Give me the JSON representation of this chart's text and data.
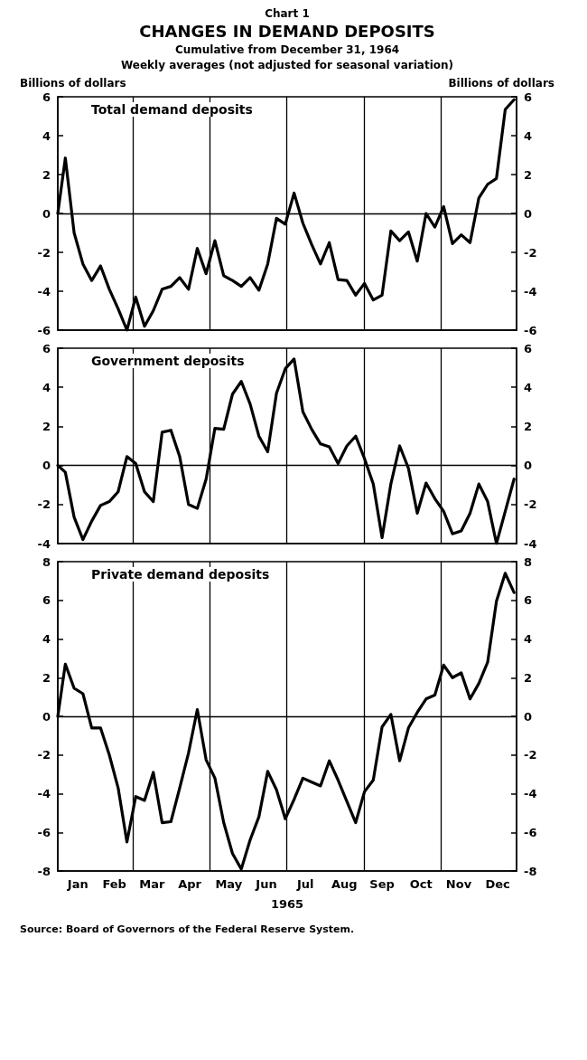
{
  "chart_data": [
    {
      "type": "line",
      "title": "CHANGES IN DEMAND DEPOSITS",
      "subtitle": "Cumulative from December 31, 1964",
      "annotations": [
        "Chart 1",
        "Weekly averages (not adjusted for seasonal variation)"
      ],
      "ylabel": "Billions of dollars",
      "y2label": "Billions of dollars",
      "x": [
        "1964-12-31",
        "1965-01-06",
        "1965-01-13",
        "1965-01-20",
        "1965-01-27",
        "1965-02-03",
        "1965-02-10",
        "1965-02-17",
        "1965-02-24",
        "1965-03-03",
        "1965-03-10",
        "1965-03-17",
        "1965-03-24",
        "1965-03-31",
        "1965-04-07",
        "1965-04-14",
        "1965-04-21",
        "1965-04-28",
        "1965-05-05",
        "1965-05-12",
        "1965-05-19",
        "1965-05-26",
        "1965-06-02",
        "1965-06-09",
        "1965-06-16",
        "1965-06-23",
        "1965-06-30",
        "1965-07-07",
        "1965-07-14",
        "1965-07-21",
        "1965-07-28",
        "1965-08-04",
        "1965-08-11",
        "1965-08-18",
        "1965-08-25",
        "1965-09-01",
        "1965-09-08",
        "1965-09-15",
        "1965-09-22",
        "1965-09-29",
        "1965-10-06",
        "1965-10-13",
        "1965-10-20",
        "1965-10-27",
        "1965-11-03",
        "1965-11-10",
        "1965-11-17",
        "1965-11-24",
        "1965-12-01",
        "1965-12-08",
        "1965-12-15",
        "1965-12-22",
        "1965-12-29"
      ],
      "series": [
        {
          "name": "Total demand deposits",
          "color": "#000000",
          "values": [
            0,
            2.85,
            -1.0,
            -2.6,
            -3.45,
            -2.7,
            -3.9,
            -4.9,
            -6,
            -4.3,
            -5.8,
            -5.0,
            -3.9,
            -3.75,
            -3.3,
            -3.9,
            -1.8,
            -3.1,
            -1.4,
            -3.2,
            -3.45,
            -3.75,
            -3.3,
            -3.95,
            -2.6,
            -0.25,
            -0.55,
            1.05,
            -0.5,
            -1.6,
            -2.6,
            -1.5,
            -3.4,
            -3.45,
            -4.2,
            -3.6,
            -4.45,
            -4.2,
            -0.9,
            -1.4,
            -0.95,
            -2.45,
            0,
            -0.7,
            0.35,
            -1.55,
            -1.1,
            -1.5,
            0.8,
            1.5,
            1.8,
            5.35,
            5.85
          ]
        }
      ],
      "xlim": [
        "1964-12-31",
        "1965-12-31"
      ],
      "ylim": [
        -6,
        6
      ],
      "yticks": [
        -6,
        -4,
        -2,
        0,
        2,
        4,
        6
      ],
      "y2lim": [
        -6,
        6
      ],
      "y2ticks": [
        -6,
        -4,
        -2,
        0,
        2,
        4,
        6
      ],
      "tick_labels": "y",
      "marker": "none",
      "line_style": "solid",
      "ref_lines": [
        {
          "axis": "y",
          "value": 0
        },
        {
          "axis": "x",
          "value": "1965-03-01"
        },
        {
          "axis": "x",
          "value": "1965-05-01"
        },
        {
          "axis": "x",
          "value": "1965-07-01"
        },
        {
          "axis": "x",
          "value": "1965-09-01"
        },
        {
          "axis": "x",
          "value": "1965-11-01"
        }
      ]
    },
    {
      "type": "line",
      "x": [
        "1964-12-31",
        "1965-01-06",
        "1965-01-13",
        "1965-01-20",
        "1965-01-27",
        "1965-02-03",
        "1965-02-10",
        "1965-02-17",
        "1965-02-24",
        "1965-03-03",
        "1965-03-10",
        "1965-03-17",
        "1965-03-24",
        "1965-03-31",
        "1965-04-07",
        "1965-04-14",
        "1965-04-21",
        "1965-04-28",
        "1965-05-05",
        "1965-05-12",
        "1965-05-19",
        "1965-05-26",
        "1965-06-02",
        "1965-06-09",
        "1965-06-16",
        "1965-06-23",
        "1965-06-30",
        "1965-07-07",
        "1965-07-14",
        "1965-07-21",
        "1965-07-28",
        "1965-08-04",
        "1965-08-11",
        "1965-08-18",
        "1965-08-25",
        "1965-09-01",
        "1965-09-08",
        "1965-09-15",
        "1965-09-22",
        "1965-09-29",
        "1965-10-06",
        "1965-10-13",
        "1965-10-20",
        "1965-10-27",
        "1965-11-03",
        "1965-11-10",
        "1965-11-17",
        "1965-11-24",
        "1965-12-01",
        "1965-12-08",
        "1965-12-15",
        "1965-12-22",
        "1965-12-29"
      ],
      "series": [
        {
          "name": "Government deposits",
          "color": "#000000",
          "values": [
            0,
            -0.35,
            -2.65,
            -3.8,
            -2.85,
            -2.05,
            -1.85,
            -1.35,
            0.45,
            0.1,
            -1.35,
            -1.85,
            1.7,
            1.8,
            0.45,
            -2.0,
            -2.2,
            -0.7,
            1.9,
            1.85,
            3.65,
            4.3,
            3.15,
            1.5,
            0.7,
            3.7,
            4.95,
            5.45,
            2.75,
            1.85,
            1.1,
            0.95,
            0.1,
            1.0,
            1.5,
            0.35,
            -0.95,
            -3.7,
            -0.95,
            1.0,
            -0.15,
            -2.45,
            -0.9,
            -1.7,
            -2.35,
            -3.5,
            -3.35,
            -2.45,
            -0.95,
            -1.85,
            -4.0,
            -2.35,
            -0.7
          ]
        }
      ],
      "xlim": [
        "1964-12-31",
        "1965-12-31"
      ],
      "ylim": [
        -4,
        6
      ],
      "yticks": [
        -4,
        -2,
        0,
        2,
        4,
        6
      ],
      "y2lim": [
        -4,
        6
      ],
      "y2ticks": [
        -4,
        -2,
        0,
        2,
        4,
        6
      ],
      "tick_labels": "y",
      "marker": "none",
      "line_style": "solid",
      "ref_lines": [
        {
          "axis": "y",
          "value": 0
        },
        {
          "axis": "x",
          "value": "1965-03-01"
        },
        {
          "axis": "x",
          "value": "1965-05-01"
        },
        {
          "axis": "x",
          "value": "1965-07-01"
        },
        {
          "axis": "x",
          "value": "1965-09-01"
        },
        {
          "axis": "x",
          "value": "1965-11-01"
        }
      ]
    },
    {
      "type": "line",
      "xlabel": "1965",
      "annotations": [
        "Source: Board of Governors of the Federal Reserve System."
      ],
      "x": [
        "1964-12-31",
        "1965-01-06",
        "1965-01-13",
        "1965-01-20",
        "1965-01-27",
        "1965-02-03",
        "1965-02-10",
        "1965-02-17",
        "1965-02-24",
        "1965-03-03",
        "1965-03-10",
        "1965-03-17",
        "1965-03-24",
        "1965-03-31",
        "1965-04-07",
        "1965-04-14",
        "1965-04-21",
        "1965-04-28",
        "1965-05-05",
        "1965-05-12",
        "1965-05-19",
        "1965-05-26",
        "1965-06-02",
        "1965-06-09",
        "1965-06-16",
        "1965-06-23",
        "1965-06-30",
        "1965-07-07",
        "1965-07-14",
        "1965-07-21",
        "1965-07-28",
        "1965-08-04",
        "1965-08-11",
        "1965-08-18",
        "1965-08-25",
        "1965-09-01",
        "1965-09-08",
        "1965-09-15",
        "1965-09-22",
        "1965-09-29",
        "1965-10-06",
        "1965-10-13",
        "1965-10-20",
        "1965-10-27",
        "1965-11-03",
        "1965-11-10",
        "1965-11-17",
        "1965-11-24",
        "1965-12-01",
        "1965-12-08",
        "1965-12-15",
        "1965-12-22",
        "1965-12-29"
      ],
      "series": [
        {
          "name": "Private demand deposits",
          "color": "#000000",
          "values": [
            0,
            2.7,
            1.45,
            1.17,
            -0.6,
            -0.6,
            -2.0,
            -3.7,
            -6.5,
            -4.15,
            -4.35,
            -2.9,
            -5.5,
            -5.45,
            -3.7,
            -1.9,
            0.35,
            -2.25,
            -3.2,
            -5.5,
            -7.1,
            -7.9,
            -6.4,
            -5.2,
            -2.85,
            -3.8,
            -5.3,
            -4.3,
            -3.2,
            -3.4,
            -3.6,
            -2.3,
            -3.3,
            -4.4,
            -5.5,
            -3.9,
            -3.3,
            -0.55,
            0.1,
            -2.3,
            -0.6,
            0.2,
            0.9,
            1.1,
            2.65,
            2.0,
            2.25,
            0.9,
            1.7,
            2.8,
            5.95,
            7.4,
            6.4
          ]
        }
      ],
      "xlim": [
        "1964-12-31",
        "1965-12-31"
      ],
      "xticks": [
        {
          "value": "1965-01-16",
          "label": "Jan"
        },
        {
          "value": "1965-02-14",
          "label": "Feb"
        },
        {
          "value": "1965-03-16",
          "label": "Mar"
        },
        {
          "value": "1965-04-15",
          "label": "Apr"
        },
        {
          "value": "1965-05-16",
          "label": "May"
        },
        {
          "value": "1965-06-15",
          "label": "Jun"
        },
        {
          "value": "1965-07-16",
          "label": "Jul"
        },
        {
          "value": "1965-08-16",
          "label": "Aug"
        },
        {
          "value": "1965-09-15",
          "label": "Sep"
        },
        {
          "value": "1965-10-16",
          "label": "Oct"
        },
        {
          "value": "1965-11-15",
          "label": "Nov"
        },
        {
          "value": "1965-12-16",
          "label": "Dec"
        }
      ],
      "ylim": [
        -8,
        8
      ],
      "yticks": [
        -8,
        -6,
        -4,
        -2,
        0,
        2,
        4,
        6,
        8
      ],
      "y2lim": [
        -8,
        8
      ],
      "y2ticks": [
        -8,
        -6,
        -4,
        -2,
        0,
        2,
        4,
        6,
        8
      ],
      "marker": "none",
      "line_style": "solid",
      "ref_lines": [
        {
          "axis": "y",
          "value": 0
        },
        {
          "axis": "x",
          "value": "1965-03-01"
        },
        {
          "axis": "x",
          "value": "1965-05-01"
        },
        {
          "axis": "x",
          "value": "1965-07-01"
        },
        {
          "axis": "x",
          "value": "1965-09-01"
        },
        {
          "axis": "x",
          "value": "1965-11-01"
        }
      ]
    }
  ]
}
